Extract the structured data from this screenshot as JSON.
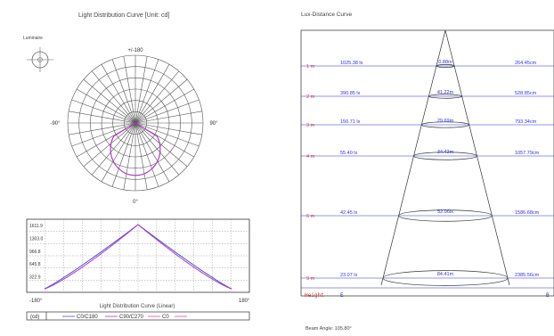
{
  "left_title": "Light Distribution Curve  [Unit: cd]",
  "luminaire_label": "Luminaire",
  "polar": {
    "top_label": "+/-180",
    "left_label": "-90°",
    "right_label": "90°",
    "bottom_label": "0°"
  },
  "linear": {
    "y_ticks": [
      "1611.9",
      "1303.0",
      "966.8",
      "645.8",
      "322.9"
    ],
    "x_left": "-180°",
    "x_right": "180°",
    "title": "Light Distribution Curve (Linear)",
    "legend": {
      "unit": "(cd)",
      "items": [
        "C0/C180",
        "C90/C270",
        "C0"
      ],
      "colors": [
        "#4a52d6",
        "#b03ac8",
        "#e24aa8"
      ]
    }
  },
  "right_title": "Lux-Distance Curve",
  "lux_rows": [
    {
      "distance": "1 m",
      "lux": "1025.38 lx",
      "beam": "0.88m",
      "area": "264.45cm"
    },
    {
      "distance": "2 m",
      "lux": "390.85 lx",
      "beam": "41.22m",
      "area": "528.85cm"
    },
    {
      "distance": "3 m",
      "lux": "150.71 lx",
      "beam": "29.69m",
      "area": "793.34cm"
    },
    {
      "distance": "4 m",
      "lux": "55.40 lx",
      "beam": "34.42m",
      "area": "1057.79cm"
    },
    {
      "distance": "6 m",
      "lux": "42.45 lx",
      "beam": "52.06lx",
      "area": "1586.68cm"
    },
    {
      "distance": "9 m",
      "lux": "23.07 lx",
      "beam": "84.41m",
      "area": "2385.56cm"
    }
  ],
  "height_label": "Height",
  "height_unit": "E",
  "right_unit": "B",
  "beam_angle": "Beam Angle: 105.80°",
  "colors": {
    "red": "#d43b3b",
    "blue": "#2e2ee0",
    "curve": "#b03ac8"
  }
}
